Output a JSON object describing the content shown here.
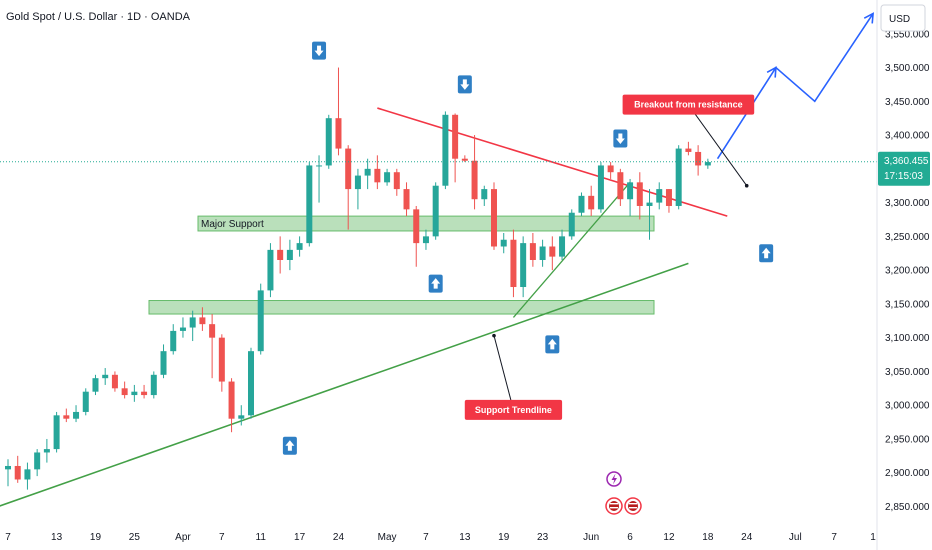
{
  "header": {
    "title": "Gold Spot / U.S. Dollar · 1D · OANDA",
    "currency": "USD"
  },
  "colors": {
    "up": "#26a69a",
    "down": "#ef5350",
    "trend": "#43a047",
    "resistance": "#f23645",
    "forecast": "#2962ff",
    "zone": "#81c784",
    "badge": "#22ab94",
    "callout": "#f23645",
    "signal": "#2f7fc4"
  },
  "chart_data": {
    "type": "candlestick",
    "title": "Gold Spot / U.S. Dollar · 1D · OANDA",
    "ylim": [
      2830,
      3600
    ],
    "y_ticks": [
      2850,
      2900,
      2950,
      3000,
      3050,
      3100,
      3150,
      3200,
      3250,
      3300,
      3350,
      3400,
      3450,
      3500,
      3550
    ],
    "y_tick_labels": [
      "2,850.000",
      "2,900.000",
      "2,950.000",
      "3,000.000",
      "3,050.000",
      "3,100.000",
      "3,150.000",
      "3,200.000",
      "3,250.000",
      "3,300.000",
      "3,350.000",
      "3,400.000",
      "3,450.000",
      "3,500.000",
      "3,550.000"
    ],
    "x_ticks": [
      {
        "i": 0,
        "label": "7"
      },
      {
        "i": 5,
        "label": "13"
      },
      {
        "i": 9,
        "label": "19"
      },
      {
        "i": 13,
        "label": "25"
      },
      {
        "i": 18,
        "label": "Apr"
      },
      {
        "i": 22,
        "label": "7"
      },
      {
        "i": 26,
        "label": "11"
      },
      {
        "i": 30,
        "label": "17"
      },
      {
        "i": 34,
        "label": "24"
      },
      {
        "i": 39,
        "label": "May"
      },
      {
        "i": 43,
        "label": "7"
      },
      {
        "i": 47,
        "label": "13"
      },
      {
        "i": 51,
        "label": "19"
      },
      {
        "i": 55,
        "label": "23"
      },
      {
        "i": 60,
        "label": "Jun"
      },
      {
        "i": 64,
        "label": "6"
      },
      {
        "i": 68,
        "label": "12"
      },
      {
        "i": 72,
        "label": "18"
      },
      {
        "i": 76,
        "label": "24"
      },
      {
        "i": 81,
        "label": "Jul"
      },
      {
        "i": 85,
        "label": "7"
      },
      {
        "i": 89,
        "label": "1"
      }
    ],
    "candles": [
      {
        "o": 2905,
        "h": 2920,
        "l": 2880,
        "c": 2910
      },
      {
        "o": 2910,
        "h": 2925,
        "l": 2885,
        "c": 2890
      },
      {
        "o": 2890,
        "h": 2915,
        "l": 2875,
        "c": 2905
      },
      {
        "o": 2905,
        "h": 2935,
        "l": 2895,
        "c": 2930
      },
      {
        "o": 2930,
        "h": 2950,
        "l": 2915,
        "c": 2935
      },
      {
        "o": 2935,
        "h": 2990,
        "l": 2930,
        "c": 2985
      },
      {
        "o": 2985,
        "h": 2995,
        "l": 2975,
        "c": 2980
      },
      {
        "o": 2980,
        "h": 3000,
        "l": 2975,
        "c": 2990
      },
      {
        "o": 2990,
        "h": 3025,
        "l": 2985,
        "c": 3020
      },
      {
        "o": 3020,
        "h": 3045,
        "l": 3015,
        "c": 3040
      },
      {
        "o": 3040,
        "h": 3055,
        "l": 3030,
        "c": 3045
      },
      {
        "o": 3045,
        "h": 3050,
        "l": 3020,
        "c": 3025
      },
      {
        "o": 3025,
        "h": 3035,
        "l": 3010,
        "c": 3015
      },
      {
        "o": 3015,
        "h": 3030,
        "l": 3005,
        "c": 3020
      },
      {
        "o": 3020,
        "h": 3030,
        "l": 3010,
        "c": 3015
      },
      {
        "o": 3015,
        "h": 3050,
        "l": 3010,
        "c": 3045
      },
      {
        "o": 3045,
        "h": 3090,
        "l": 3040,
        "c": 3080
      },
      {
        "o": 3080,
        "h": 3120,
        "l": 3075,
        "c": 3110
      },
      {
        "o": 3110,
        "h": 3130,
        "l": 3100,
        "c": 3115
      },
      {
        "o": 3115,
        "h": 3140,
        "l": 3095,
        "c": 3130
      },
      {
        "o": 3130,
        "h": 3145,
        "l": 3110,
        "c": 3120
      },
      {
        "o": 3120,
        "h": 3135,
        "l": 3040,
        "c": 3100
      },
      {
        "o": 3100,
        "h": 3105,
        "l": 3020,
        "c": 3035
      },
      {
        "o": 3035,
        "h": 3040,
        "l": 2960,
        "c": 2980
      },
      {
        "o": 2980,
        "h": 3000,
        "l": 2970,
        "c": 2985
      },
      {
        "o": 2985,
        "h": 3085,
        "l": 2980,
        "c": 3080
      },
      {
        "o": 3080,
        "h": 3180,
        "l": 3075,
        "c": 3170
      },
      {
        "o": 3170,
        "h": 3240,
        "l": 3160,
        "c": 3230
      },
      {
        "o": 3230,
        "h": 3250,
        "l": 3195,
        "c": 3215
      },
      {
        "o": 3215,
        "h": 3245,
        "l": 3200,
        "c": 3230
      },
      {
        "o": 3230,
        "h": 3250,
        "l": 3220,
        "c": 3240
      },
      {
        "o": 3240,
        "h": 3360,
        "l": 3235,
        "c": 3355
      },
      {
        "o": 3355,
        "h": 3370,
        "l": 3300,
        "c": 3355
      },
      {
        "o": 3355,
        "h": 3430,
        "l": 3350,
        "c": 3425
      },
      {
        "o": 3425,
        "h": 3500,
        "l": 3370,
        "c": 3380
      },
      {
        "o": 3380,
        "h": 3385,
        "l": 3260,
        "c": 3320
      },
      {
        "o": 3320,
        "h": 3350,
        "l": 3290,
        "c": 3340
      },
      {
        "o": 3340,
        "h": 3365,
        "l": 3320,
        "c": 3350
      },
      {
        "o": 3350,
        "h": 3370,
        "l": 3320,
        "c": 3330
      },
      {
        "o": 3330,
        "h": 3350,
        "l": 3325,
        "c": 3345
      },
      {
        "o": 3345,
        "h": 3350,
        "l": 3310,
        "c": 3320
      },
      {
        "o": 3320,
        "h": 3330,
        "l": 3280,
        "c": 3290
      },
      {
        "o": 3290,
        "h": 3295,
        "l": 3205,
        "c": 3240
      },
      {
        "o": 3240,
        "h": 3260,
        "l": 3230,
        "c": 3250
      },
      {
        "o": 3250,
        "h": 3330,
        "l": 3245,
        "c": 3325
      },
      {
        "o": 3325,
        "h": 3435,
        "l": 3320,
        "c": 3430
      },
      {
        "o": 3430,
        "h": 3432,
        "l": 3330,
        "c": 3365
      },
      {
        "o": 3365,
        "h": 3370,
        "l": 3360,
        "c": 3362
      },
      {
        "o": 3362,
        "h": 3400,
        "l": 3290,
        "c": 3305
      },
      {
        "o": 3305,
        "h": 3325,
        "l": 3295,
        "c": 3320
      },
      {
        "o": 3320,
        "h": 3330,
        "l": 3230,
        "c": 3235
      },
      {
        "o": 3235,
        "h": 3255,
        "l": 3225,
        "c": 3245
      },
      {
        "o": 3245,
        "h": 3260,
        "l": 3160,
        "c": 3175
      },
      {
        "o": 3175,
        "h": 3250,
        "l": 3160,
        "c": 3240
      },
      {
        "o": 3240,
        "h": 3255,
        "l": 3205,
        "c": 3215
      },
      {
        "o": 3215,
        "h": 3245,
        "l": 3205,
        "c": 3235
      },
      {
        "o": 3235,
        "h": 3250,
        "l": 3200,
        "c": 3220
      },
      {
        "o": 3220,
        "h": 3260,
        "l": 3215,
        "c": 3250
      },
      {
        "o": 3250,
        "h": 3290,
        "l": 3245,
        "c": 3285
      },
      {
        "o": 3285,
        "h": 3315,
        "l": 3280,
        "c": 3310
      },
      {
        "o": 3310,
        "h": 3325,
        "l": 3280,
        "c": 3290
      },
      {
        "o": 3290,
        "h": 3360,
        "l": 3285,
        "c": 3355
      },
      {
        "o": 3355,
        "h": 3360,
        "l": 3335,
        "c": 3345
      },
      {
        "o": 3345,
        "h": 3350,
        "l": 3295,
        "c": 3305
      },
      {
        "o": 3305,
        "h": 3335,
        "l": 3280,
        "c": 3330
      },
      {
        "o": 3330,
        "h": 3345,
        "l": 3275,
        "c": 3295
      },
      {
        "o": 3295,
        "h": 3320,
        "l": 3245,
        "c": 3300
      },
      {
        "o": 3300,
        "h": 3330,
        "l": 3290,
        "c": 3320
      },
      {
        "o": 3320,
        "h": 3320,
        "l": 3285,
        "c": 3295
      },
      {
        "o": 3295,
        "h": 3385,
        "l": 3290,
        "c": 3380
      },
      {
        "o": 3380,
        "h": 3390,
        "l": 3370,
        "c": 3375
      },
      {
        "o": 3375,
        "h": 3385,
        "l": 3340,
        "c": 3355
      },
      {
        "o": 3355,
        "h": 3365,
        "l": 3350,
        "c": 3360
      }
    ],
    "support_zones": [
      {
        "label": "Major Support",
        "low": 3258,
        "high": 3280
      },
      {
        "label": "",
        "low": 3135,
        "high": 3155
      }
    ],
    "trendlines": [
      {
        "name": "support-trendline",
        "from": {
          "i": -1,
          "p": 2850
        },
        "to": {
          "i": 70,
          "p": 3210
        }
      },
      {
        "name": "resistance-line",
        "from": {
          "i": 38,
          "p": 3440
        },
        "to": {
          "i": 74,
          "p": 3280
        }
      },
      {
        "name": "rising-support",
        "from": {
          "i": 52,
          "p": 3130
        },
        "to": {
          "i": 64,
          "p": 3330
        }
      }
    ],
    "forecast_path": [
      {
        "i": 73,
        "p": 3365
      },
      {
        "i": 79,
        "p": 3500
      },
      {
        "i": 83,
        "p": 3450
      },
      {
        "i": 89,
        "p": 3580
      }
    ],
    "signals": [
      {
        "i": 32,
        "p": 3525,
        "dir": "down"
      },
      {
        "i": 47,
        "p": 3475,
        "dir": "down"
      },
      {
        "i": 63,
        "p": 3395,
        "dir": "down"
      },
      {
        "i": 29,
        "p": 2940,
        "dir": "up"
      },
      {
        "i": 44,
        "p": 3180,
        "dir": "up"
      },
      {
        "i": 78,
        "p": 3225,
        "dir": "up"
      },
      {
        "i": 56,
        "p": 3090,
        "dir": "up"
      }
    ],
    "callouts": [
      {
        "text": "Breakout from resistance",
        "anchor": {
          "i": 76,
          "p": 3325
        },
        "box": {
          "i": 70,
          "p": 3445
        }
      },
      {
        "text": "Support Trendline",
        "anchor": {
          "i": 50,
          "p": 3103
        },
        "box": {
          "i": 52,
          "p": 2993
        }
      }
    ],
    "last_price": {
      "value": 3360.455,
      "label": "3,360.455",
      "countdown": "17:15:03"
    }
  }
}
